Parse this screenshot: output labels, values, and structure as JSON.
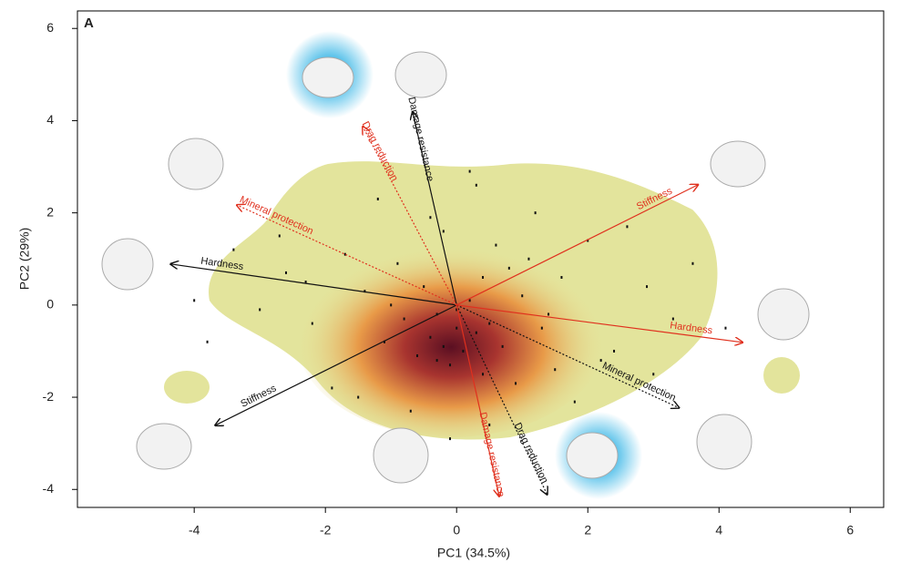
{
  "chart_data": {
    "type": "scatter",
    "panel_label": "A",
    "x_label": "PC1 (34.5%)",
    "y_label": "PC2 (29%)",
    "xlim": [
      -5.78,
      6.51
    ],
    "ylim": [
      -4.39,
      6.38
    ],
    "xticks": [
      -4,
      -2,
      0,
      2,
      4,
      6
    ],
    "yticks": [
      -4,
      -2,
      0,
      2,
      4,
      6
    ],
    "color": "#111111",
    "x": [
      -0.2,
      0.1,
      -0.4,
      0.3,
      -0.1,
      0.5,
      -0.6,
      0.2,
      -0.3,
      0.0,
      0.7,
      -0.8,
      0.4,
      -0.5,
      1.0,
      -1.1,
      0.8,
      -0.9,
      1.3,
      -1.4,
      0.6,
      -0.2,
      1.6,
      -1.7,
      0.9,
      -2.2,
      2.0,
      -2.6,
      2.4,
      -3.0,
      2.9,
      -3.4,
      3.3,
      -3.8,
      1.2,
      -1.2,
      0.3,
      -0.4,
      1.8,
      -1.9,
      2.6,
      -2.7,
      3.6,
      -4.0,
      4.1,
      -0.7,
      0.5,
      1.5,
      -1.5,
      0.2,
      -0.1,
      2.2,
      -2.3,
      3.0,
      0.4,
      -0.3,
      1.1,
      -1.0,
      0.0,
      1.4
    ],
    "values": [
      -0.9,
      -1.0,
      -0.7,
      -0.6,
      -1.3,
      -0.4,
      -1.1,
      0.1,
      -0.2,
      -0.5,
      -0.9,
      -0.3,
      -1.5,
      0.4,
      0.2,
      -0.8,
      0.8,
      0.9,
      -0.5,
      0.3,
      1.3,
      1.6,
      0.6,
      1.1,
      -1.7,
      -0.4,
      1.4,
      0.7,
      -1.0,
      -0.1,
      0.4,
      1.2,
      -0.3,
      -0.8,
      2.0,
      2.3,
      2.6,
      1.9,
      -2.1,
      -1.8,
      1.7,
      1.5,
      0.9,
      0.1,
      -0.5,
      -2.3,
      -2.6,
      -1.4,
      -2.0,
      2.9,
      -2.9,
      -1.2,
      0.5,
      -1.5,
      0.6,
      -1.2,
      1.0,
      0.0,
      -0.1,
      -0.2
    ],
    "loadings": [
      {
        "name": "Hardness",
        "color": "#111111",
        "x": -4.36,
        "y": 0.89,
        "style": "solid"
      },
      {
        "name": "Stiffness",
        "color": "#111111",
        "x": -3.68,
        "y": -2.61,
        "style": "solid"
      },
      {
        "name": "Damage resistance",
        "color": "#111111",
        "x": -0.67,
        "y": 4.19,
        "style": "solid"
      },
      {
        "name": "Drag reduction",
        "color": "#111111",
        "x": 1.38,
        "y": -4.11,
        "style": "dotted"
      },
      {
        "name": "Mineral protection",
        "color": "#111111",
        "x": 3.39,
        "y": -2.23,
        "style": "dotted"
      },
      {
        "name": "Stiffness",
        "color": "#e0301e",
        "x": 3.68,
        "y": 2.61,
        "style": "solid"
      },
      {
        "name": "Hardness",
        "color": "#e0301e",
        "x": 4.36,
        "y": -0.81,
        "style": "solid"
      },
      {
        "name": "Damage resistance",
        "color": "#e0301e",
        "x": 0.65,
        "y": -4.15,
        "style": "solid"
      },
      {
        "name": "Drag reduction",
        "color": "#e0301e",
        "x": -1.43,
        "y": 3.87,
        "style": "dotted"
      },
      {
        "name": "Mineral protection",
        "color": "#e0301e",
        "x": -3.35,
        "y": 2.17,
        "style": "dotted"
      }
    ]
  }
}
